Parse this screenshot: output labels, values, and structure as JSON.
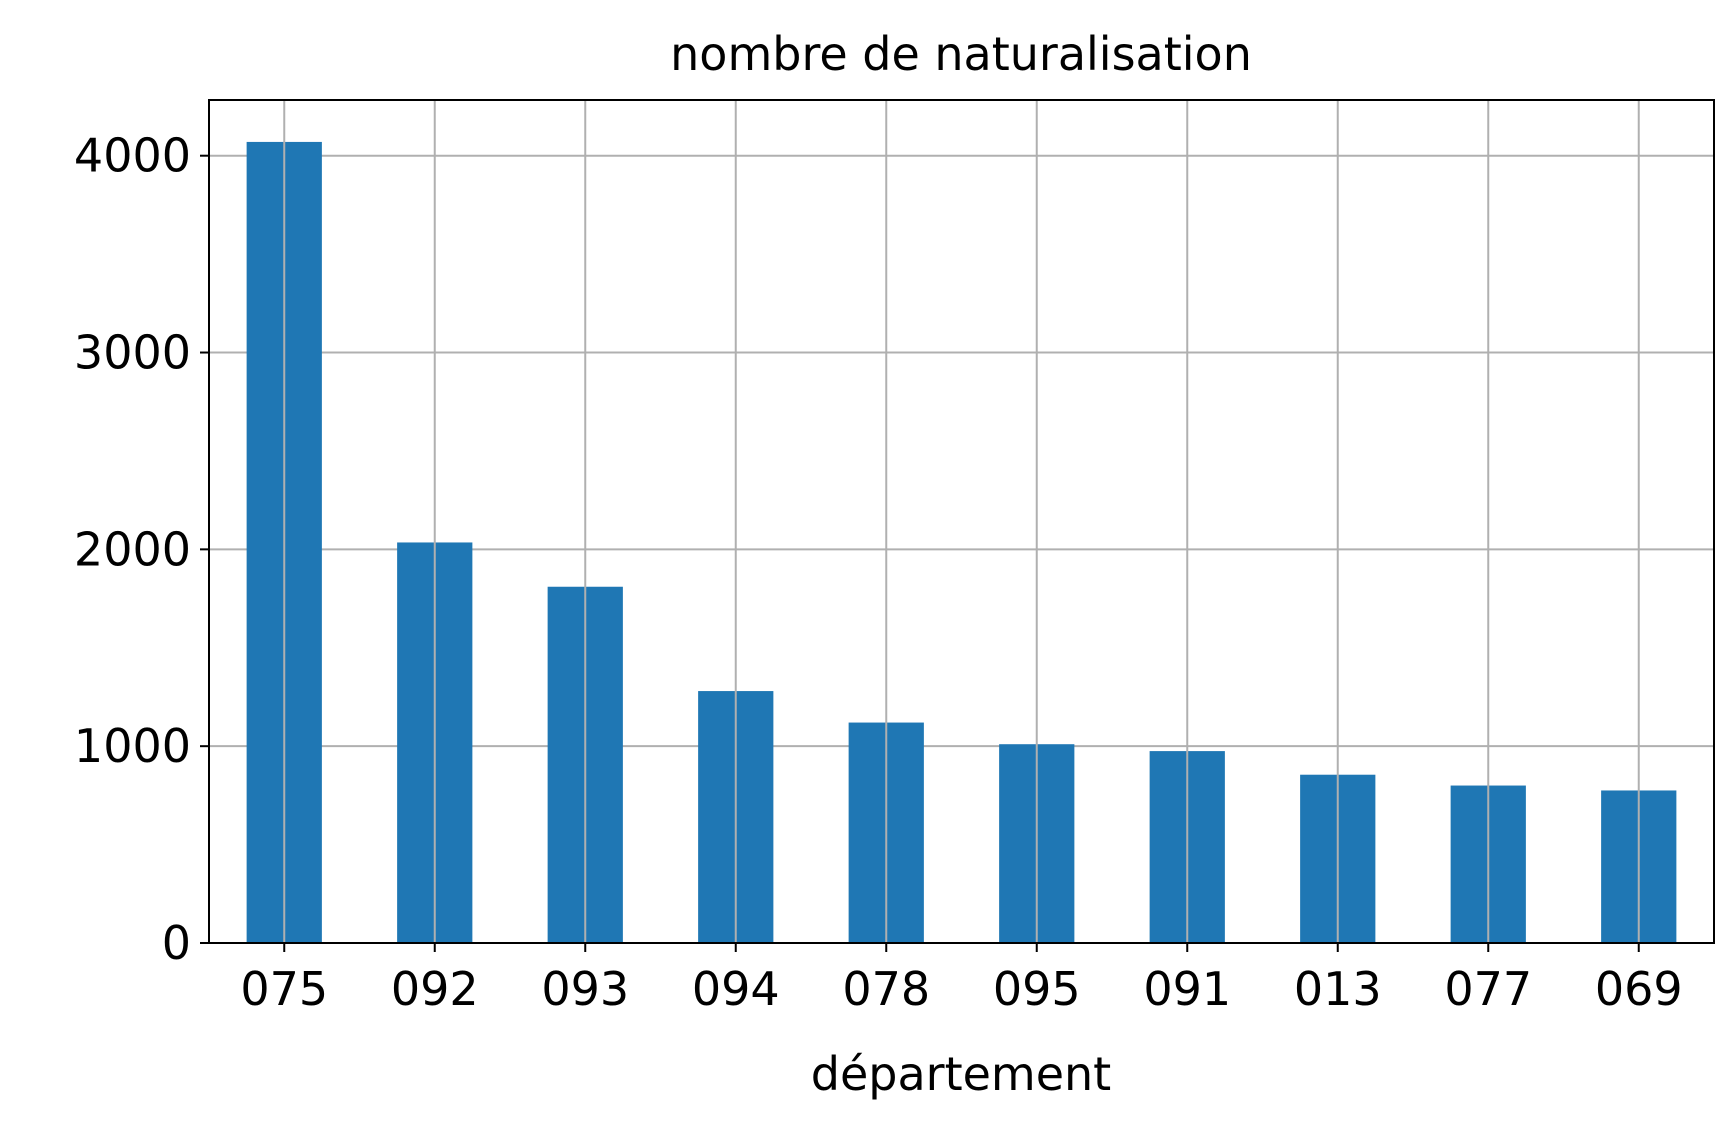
{
  "chart_data": {
    "type": "bar",
    "title": "nombre de naturalisation",
    "x_label": "département",
    "categories": [
      "075",
      "092",
      "093",
      "094",
      "078",
      "095",
      "091",
      "013",
      "077",
      "069"
    ],
    "values": [
      4070,
      2035,
      1810,
      1280,
      1120,
      1010,
      975,
      855,
      800,
      775
    ],
    "color": "#1f77b4",
    "ylim": [
      0,
      4283
    ],
    "yticks": [
      0,
      1000,
      2000,
      3000,
      4000
    ],
    "grid": true
  }
}
